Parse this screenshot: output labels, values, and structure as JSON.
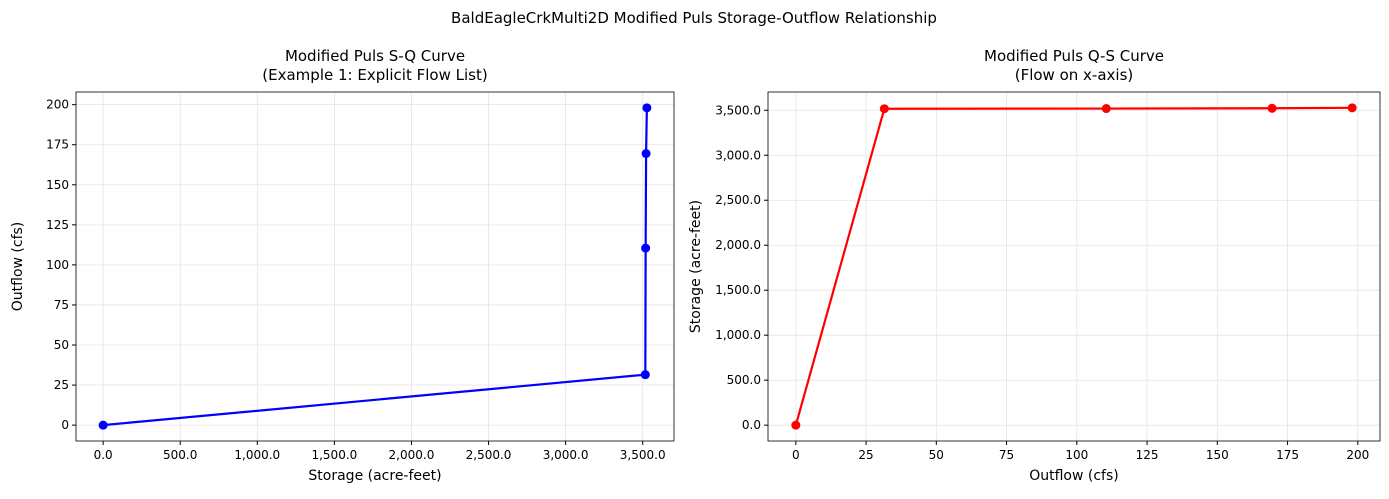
{
  "title": "BaldEagleCrkMulti2D Modified Puls Storage-Outflow Relationship",
  "chart_data": [
    {
      "type": "line",
      "title": "Modified Puls S-Q Curve",
      "subtitle": "(Example 1: Explicit Flow List)",
      "x_label": "Storage (acre-feet)",
      "y_label": "Outflow (cfs)",
      "x": [
        0,
        3517,
        3519,
        3522,
        3527
      ],
      "values": [
        0,
        31.5,
        110.5,
        169.5,
        198
      ],
      "color": "#0000ff",
      "xlim": [
        -176,
        3703
      ],
      "ylim": [
        -9.9,
        207.9
      ],
      "xticks": [
        {
          "value": 0,
          "label": "0.0"
        },
        {
          "value": 500,
          "label": "500.0"
        },
        {
          "value": 1000,
          "label": "1,000.0"
        },
        {
          "value": 1500,
          "label": "1,500.0"
        },
        {
          "value": 2000,
          "label": "2,000.0"
        },
        {
          "value": 2500,
          "label": "2,500.0"
        },
        {
          "value": 3000,
          "label": "3,000.0"
        },
        {
          "value": 3500,
          "label": "3,500.0"
        }
      ],
      "yticks": [
        0,
        25,
        50,
        75,
        100,
        125,
        150,
        175,
        200
      ],
      "grid": true
    },
    {
      "type": "line",
      "title": "Modified Puls Q-S Curve",
      "subtitle": "(Flow on x-axis)",
      "x_label": "Outflow (cfs)",
      "y_label": "Storage (acre-feet)",
      "x": [
        0,
        31.5,
        110.5,
        169.5,
        198
      ],
      "values": [
        0,
        3517,
        3519,
        3522,
        3527
      ],
      "color": "#ff0000",
      "xlim": [
        -9.9,
        207.9
      ],
      "ylim": [
        -176,
        3703
      ],
      "xticks": [
        0,
        25,
        50,
        75,
        100,
        125,
        150,
        175,
        200
      ],
      "yticks": [
        {
          "value": 0,
          "label": "0.0"
        },
        {
          "value": 500,
          "label": "500.0"
        },
        {
          "value": 1000,
          "label": "1,000.0"
        },
        {
          "value": 1500,
          "label": "1,500.0"
        },
        {
          "value": 2000,
          "label": "2,000.0"
        },
        {
          "value": 2500,
          "label": "2,500.0"
        },
        {
          "value": 3000,
          "label": "3,000.0"
        },
        {
          "value": 3500,
          "label": "3,500.0"
        }
      ],
      "grid": true
    }
  ]
}
